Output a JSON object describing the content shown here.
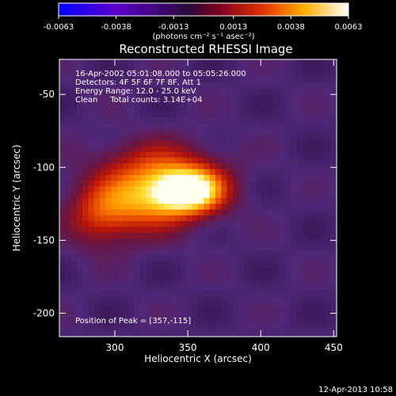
{
  "chart_data": {
    "type": "heatmap",
    "title": "Reconstructed RHESSI Image",
    "xlabel": "Heliocentric X (arcsec)",
    "ylabel": "Heliocentric Y (arcsec)",
    "xlim": [
      262,
      452
    ],
    "ylim": [
      -216,
      -26
    ],
    "x_ticks": [
      300,
      350,
      400,
      450
    ],
    "y_ticks": [
      -200,
      -150,
      -100,
      -50
    ],
    "colorbar": {
      "min": -0.0063,
      "max": 0.0063,
      "tick_values": [
        -0.0063,
        -0.0038,
        -0.0013,
        0.0013,
        0.0038,
        0.0063
      ],
      "tick_labels": [
        "-0.0063",
        "-0.0038",
        "-0.0013",
        "0.0013",
        "0.0038",
        "0.0063"
      ],
      "label": "(photons cm⁻² s⁻¹ asec⁻²)"
    },
    "annotations": [
      "16-Apr-2002 05:01:08.000 to 05:05:26.000",
      "Detectors: 4F 5F 6F 7F 8F, Att 1",
      "Energy Range: 12.0 - 25.0 keV",
      "Clean     Total counts: 3.14E+04"
    ],
    "peak_label": "Position of Peak = [357,-115]",
    "peak": {
      "x": 357,
      "y": -115
    },
    "background_level": 0.00085,
    "sources": [
      {
        "x": 352,
        "y": -116,
        "amplitude": 0.0055,
        "sigma_x": 17,
        "sigma_y": 11
      },
      {
        "x": 322,
        "y": -120,
        "amplitude": 0.0036,
        "sigma_x": 23,
        "sigma_y": 16
      },
      {
        "x": 290,
        "y": -133,
        "amplitude": 0.0022,
        "sigma_x": 16,
        "sigma_y": 15
      },
      {
        "x": 330,
        "y": -96,
        "amplitude": 0.0014,
        "sigma_x": 28,
        "sigma_y": 12
      }
    ]
  },
  "timestamp": "12-Apr-2013 10:58"
}
